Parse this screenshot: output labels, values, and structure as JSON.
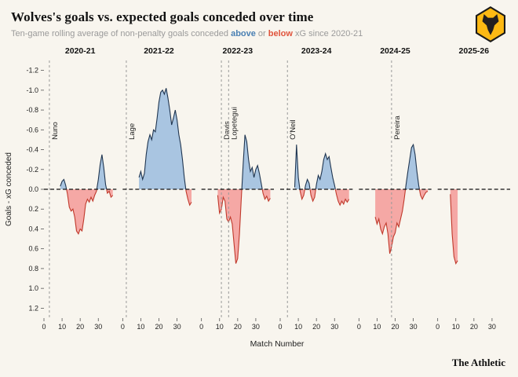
{
  "brand": {
    "gold": "#fdb913",
    "black": "#231f20",
    "background": "#f8f5ee"
  },
  "header": {
    "title": "Wolves's goals vs. expected goals conceded over time",
    "subtitle_prefix": "Ten-game rolling average of non-penalty goals conceded ",
    "subtitle_above": "above",
    "subtitle_mid": " or ",
    "subtitle_below": "below",
    "subtitle_suffix": " xG since 2020-21"
  },
  "footer": {
    "brand": "The Athletic"
  },
  "chart_data": {
    "type": "area",
    "title": "Wolves's goals vs. expected goals conceded over time",
    "subtitle": "Ten-game rolling average of non-penalty goals conceded above or below xG since 2020-21",
    "xlabel": "Match Number",
    "ylabel": "Goals - xG conceded",
    "xlim": [
      0,
      40
    ],
    "ylim": [
      -1.3,
      1.3
    ],
    "y_axis_inverted": true,
    "xticks": [
      0,
      10,
      20,
      30
    ],
    "yticks": [
      -1.2,
      -1.0,
      -0.8,
      -0.6,
      -0.4,
      -0.2,
      0.0,
      0.2,
      0.4,
      0.6,
      0.8,
      1.0,
      1.2
    ],
    "colors": {
      "above_fill": "#a9c5e1",
      "above_line": "#1f3550",
      "below_fill": "#f5a8a5",
      "below_line": "#c0392b",
      "zero_line": "#111111",
      "manager_line": "#999999",
      "above_accent": "#4a80b3",
      "below_accent": "#e0543c",
      "tick_text": "#222222"
    },
    "facets": [
      {
        "season": "2020-21",
        "managers": [
          {
            "name": "Nuno",
            "x": 3
          }
        ],
        "points": [
          [
            9,
            -0.03
          ],
          [
            10,
            -0.08
          ],
          [
            11,
            -0.1
          ],
          [
            12,
            -0.04
          ],
          [
            13,
            0.05
          ],
          [
            14,
            0.18
          ],
          [
            15,
            0.22
          ],
          [
            16,
            0.2
          ],
          [
            17,
            0.28
          ],
          [
            18,
            0.42
          ],
          [
            19,
            0.45
          ],
          [
            20,
            0.4
          ],
          [
            21,
            0.42
          ],
          [
            22,
            0.3
          ],
          [
            23,
            0.15
          ],
          [
            24,
            0.1
          ],
          [
            25,
            0.13
          ],
          [
            26,
            0.08
          ],
          [
            27,
            0.12
          ],
          [
            28,
            0.06
          ],
          [
            29,
            0.02
          ],
          [
            30,
            -0.1
          ],
          [
            31,
            -0.25
          ],
          [
            32,
            -0.35
          ],
          [
            33,
            -0.22
          ],
          [
            34,
            -0.05
          ],
          [
            35,
            0.04
          ],
          [
            36,
            0.02
          ],
          [
            37,
            0.08
          ],
          [
            38,
            0.06
          ]
        ]
      },
      {
        "season": "2021-22",
        "managers": [
          {
            "name": "Lage",
            "x": 2
          }
        ],
        "points": [
          [
            9,
            -0.12
          ],
          [
            10,
            -0.18
          ],
          [
            11,
            -0.1
          ],
          [
            12,
            -0.16
          ],
          [
            13,
            -0.35
          ],
          [
            14,
            -0.48
          ],
          [
            15,
            -0.55
          ],
          [
            16,
            -0.5
          ],
          [
            17,
            -0.6
          ],
          [
            18,
            -0.58
          ],
          [
            19,
            -0.72
          ],
          [
            20,
            -0.88
          ],
          [
            21,
            -0.98
          ],
          [
            22,
            -1.0
          ],
          [
            23,
            -0.96
          ],
          [
            24,
            -1.02
          ],
          [
            25,
            -0.92
          ],
          [
            26,
            -0.8
          ],
          [
            27,
            -0.65
          ],
          [
            28,
            -0.72
          ],
          [
            29,
            -0.8
          ],
          [
            30,
            -0.7
          ],
          [
            31,
            -0.55
          ],
          [
            32,
            -0.45
          ],
          [
            33,
            -0.3
          ],
          [
            34,
            -0.12
          ],
          [
            35,
            0.02
          ],
          [
            36,
            0.1
          ],
          [
            37,
            0.16
          ],
          [
            38,
            0.13
          ]
        ]
      },
      {
        "season": "2022-23",
        "managers": [
          {
            "name": "Davis",
            "x": 11
          },
          {
            "name": "Lopetegui",
            "x": 15
          }
        ],
        "points": [
          [
            9,
            0.06
          ],
          [
            10,
            0.24
          ],
          [
            11,
            0.2
          ],
          [
            12,
            0.08
          ],
          [
            13,
            0.12
          ],
          [
            14,
            0.3
          ],
          [
            15,
            0.33
          ],
          [
            16,
            0.28
          ],
          [
            17,
            0.35
          ],
          [
            18,
            0.55
          ],
          [
            19,
            0.75
          ],
          [
            20,
            0.7
          ],
          [
            21,
            0.45
          ],
          [
            22,
            0.1
          ],
          [
            23,
            -0.25
          ],
          [
            24,
            -0.55
          ],
          [
            25,
            -0.48
          ],
          [
            26,
            -0.3
          ],
          [
            27,
            -0.18
          ],
          [
            28,
            -0.22
          ],
          [
            29,
            -0.12
          ],
          [
            30,
            -0.2
          ],
          [
            31,
            -0.24
          ],
          [
            32,
            -0.16
          ],
          [
            33,
            -0.06
          ],
          [
            34,
            0.04
          ],
          [
            35,
            0.1
          ],
          [
            36,
            0.07
          ],
          [
            37,
            0.12
          ],
          [
            38,
            0.09
          ]
        ]
      },
      {
        "season": "2023-24",
        "managers": [
          {
            "name": "O'Neil",
            "x": 4
          }
        ],
        "points": [
          [
            8,
            -0.02
          ],
          [
            9,
            -0.45
          ],
          [
            10,
            -0.12
          ],
          [
            11,
            0.02
          ],
          [
            12,
            0.1
          ],
          [
            13,
            0.06
          ],
          [
            14,
            -0.04
          ],
          [
            15,
            -0.1
          ],
          [
            16,
            -0.06
          ],
          [
            17,
            0.06
          ],
          [
            18,
            0.12
          ],
          [
            19,
            0.08
          ],
          [
            20,
            -0.05
          ],
          [
            21,
            -0.14
          ],
          [
            22,
            -0.1
          ],
          [
            23,
            -0.18
          ],
          [
            24,
            -0.3
          ],
          [
            25,
            -0.36
          ],
          [
            26,
            -0.3
          ],
          [
            27,
            -0.33
          ],
          [
            28,
            -0.22
          ],
          [
            29,
            -0.12
          ],
          [
            30,
            -0.04
          ],
          [
            31,
            0.05
          ],
          [
            32,
            0.12
          ],
          [
            33,
            0.16
          ],
          [
            34,
            0.12
          ],
          [
            35,
            0.15
          ],
          [
            36,
            0.1
          ],
          [
            37,
            0.13
          ],
          [
            38,
            0.1
          ]
        ]
      },
      {
        "season": "2024-25",
        "managers": [
          {
            "name": "Pereira",
            "x": 18
          }
        ],
        "points": [
          [
            9,
            0.28
          ],
          [
            10,
            0.35
          ],
          [
            11,
            0.3
          ],
          [
            12,
            0.4
          ],
          [
            13,
            0.45
          ],
          [
            14,
            0.38
          ],
          [
            15,
            0.34
          ],
          [
            16,
            0.45
          ],
          [
            17,
            0.65
          ],
          [
            18,
            0.58
          ],
          [
            19,
            0.48
          ],
          [
            20,
            0.44
          ],
          [
            21,
            0.34
          ],
          [
            22,
            0.38
          ],
          [
            23,
            0.3
          ],
          [
            24,
            0.22
          ],
          [
            25,
            0.1
          ],
          [
            26,
            -0.05
          ],
          [
            27,
            -0.18
          ],
          [
            28,
            -0.3
          ],
          [
            29,
            -0.42
          ],
          [
            30,
            -0.45
          ],
          [
            31,
            -0.35
          ],
          [
            32,
            -0.18
          ],
          [
            33,
            -0.04
          ],
          [
            34,
            0.06
          ],
          [
            35,
            0.1
          ],
          [
            36,
            0.06
          ],
          [
            37,
            0.03
          ],
          [
            38,
            0.02
          ]
        ]
      },
      {
        "season": "2025-26",
        "managers": [],
        "points": [
          [
            7,
            0.05
          ],
          [
            8,
            0.45
          ],
          [
            9,
            0.68
          ],
          [
            10,
            0.75
          ],
          [
            11,
            0.72
          ]
        ]
      }
    ]
  }
}
